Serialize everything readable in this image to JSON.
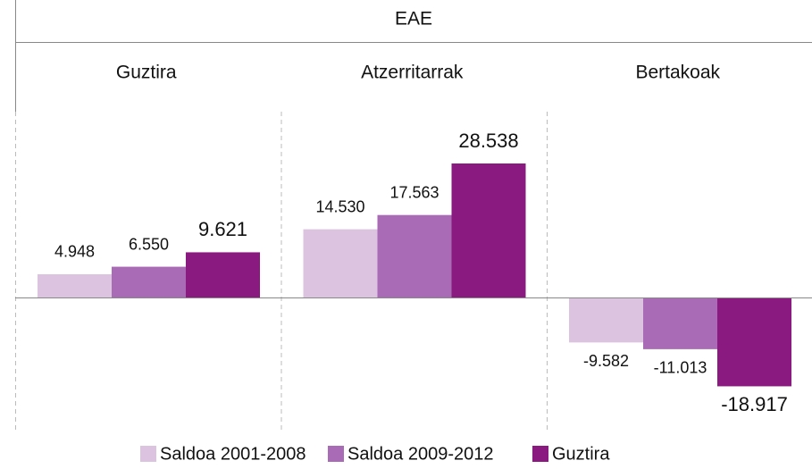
{
  "chart_data": {
    "type": "bar",
    "title": "EAE",
    "categories": [
      "Guztira",
      "Atzerritarrak",
      "Bertakoak"
    ],
    "series": [
      {
        "name": "Saldoa 2001-2008",
        "color": "#dcc3e0",
        "values": [
          4948,
          14530,
          -9582
        ],
        "value_labels": [
          "4.948",
          "14.530",
          "-9.582"
        ]
      },
      {
        "name": "Saldoa 2009-2012",
        "color": "#a96bb5",
        "values": [
          6550,
          17563,
          -11013
        ],
        "value_labels": [
          "6.550",
          "17.563",
          "-11.013"
        ]
      },
      {
        "name": "Guztira",
        "color": "#8b1a80",
        "values": [
          9621,
          28538,
          -18917
        ],
        "value_labels": [
          "9.621",
          "28.538",
          "-18.917"
        ]
      }
    ]
  }
}
